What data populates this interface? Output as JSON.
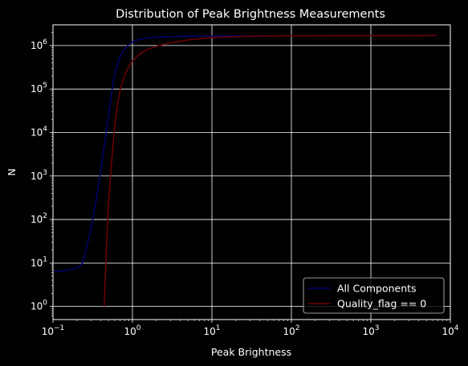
{
  "chart_data": {
    "type": "line",
    "title": "Distribution of Peak Brightness Measurements",
    "xlabel": "Peak Brightness",
    "ylabel": "N",
    "xscale": "log",
    "yscale": "log",
    "xlim": [
      0.1,
      10000
    ],
    "ylim": [
      0.5,
      3000000
    ],
    "grid": true,
    "background": "#000000",
    "foreground": "#ffffff",
    "legend_position": "lower-right",
    "x_ticks": [
      0.1,
      1,
      10,
      100,
      1000,
      10000
    ],
    "x_tick_labels": [
      {
        "base": "10",
        "exp": "−1"
      },
      {
        "base": "10",
        "exp": "0"
      },
      {
        "base": "10",
        "exp": "1"
      },
      {
        "base": "10",
        "exp": "2"
      },
      {
        "base": "10",
        "exp": "3"
      },
      {
        "base": "10",
        "exp": "4"
      }
    ],
    "y_ticks": [
      1,
      10,
      100,
      1000,
      10000,
      100000,
      1000000
    ],
    "y_tick_labels": [
      {
        "base": "10",
        "exp": "0"
      },
      {
        "base": "10",
        "exp": "1"
      },
      {
        "base": "10",
        "exp": "2"
      },
      {
        "base": "10",
        "exp": "3"
      },
      {
        "base": "10",
        "exp": "4"
      },
      {
        "base": "10",
        "exp": "5"
      },
      {
        "base": "10",
        "exp": "6"
      }
    ],
    "series": [
      {
        "name": "All Components",
        "color": "#00006e",
        "points": [
          [
            0.1,
            6.3
          ],
          [
            0.15,
            6.8
          ],
          [
            0.2,
            7.8
          ],
          [
            0.22,
            8.5
          ],
          [
            0.24,
            11
          ],
          [
            0.26,
            20
          ],
          [
            0.3,
            60
          ],
          [
            0.35,
            280
          ],
          [
            0.4,
            1400
          ],
          [
            0.45,
            6000
          ],
          [
            0.5,
            25000
          ],
          [
            0.55,
            90000
          ],
          [
            0.6,
            230000
          ],
          [
            0.7,
            560000
          ],
          [
            0.8,
            860000
          ],
          [
            0.9,
            1050000
          ],
          [
            1.0,
            1200000
          ],
          [
            1.2,
            1370000
          ],
          [
            1.5,
            1480000
          ],
          [
            2,
            1560000
          ],
          [
            3,
            1610000
          ],
          [
            5,
            1640000
          ],
          [
            10,
            1660000
          ],
          [
            100,
            1680000
          ],
          [
            1000,
            1690000
          ],
          [
            6800,
            1700000
          ]
        ]
      },
      {
        "name": "Quality_flag == 0",
        "color": "#6e0000",
        "points": [
          [
            0.44,
            1.0
          ],
          [
            0.46,
            8
          ],
          [
            0.48,
            50
          ],
          [
            0.5,
            250
          ],
          [
            0.55,
            2500
          ],
          [
            0.6,
            15000
          ],
          [
            0.65,
            45000
          ],
          [
            0.7,
            95000
          ],
          [
            0.8,
            210000
          ],
          [
            0.9,
            330000
          ],
          [
            1.0,
            440000
          ],
          [
            1.2,
            620000
          ],
          [
            1.5,
            800000
          ],
          [
            2,
            960000
          ],
          [
            3,
            1160000
          ],
          [
            5,
            1350000
          ],
          [
            10,
            1520000
          ],
          [
            20,
            1610000
          ],
          [
            50,
            1660000
          ],
          [
            100,
            1680000
          ],
          [
            1000,
            1690000
          ],
          [
            6800,
            1700000
          ]
        ]
      }
    ]
  }
}
